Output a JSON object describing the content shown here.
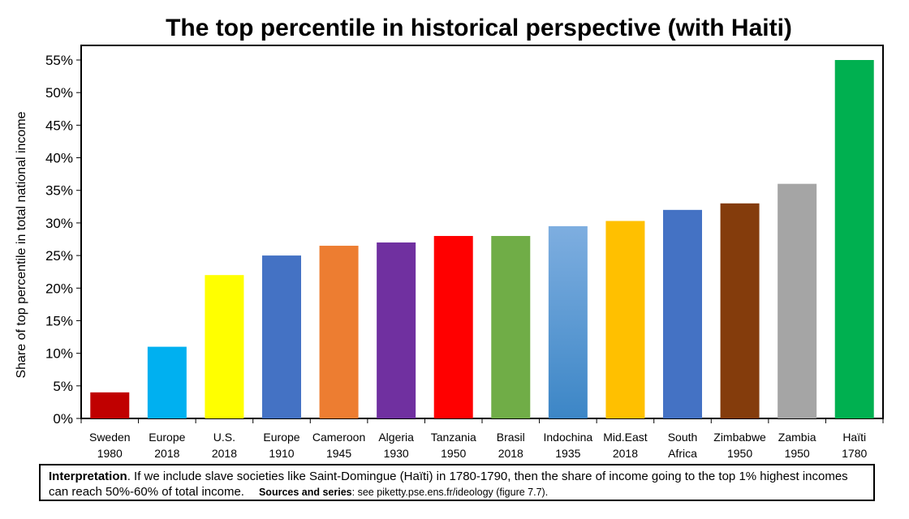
{
  "chart_data": {
    "type": "bar",
    "title": "The top percentile in historical perspective (with Haiti)",
    "ylabel": "Share of top percentile in total national income",
    "ylim": [
      0,
      0.55
    ],
    "yticks": [
      "0%",
      "5%",
      "10%",
      "15%",
      "20%",
      "25%",
      "30%",
      "35%",
      "40%",
      "45%",
      "50%",
      "55%"
    ],
    "ytick_values": [
      0,
      0.05,
      0.1,
      0.15,
      0.2,
      0.25,
      0.3,
      0.35,
      0.4,
      0.45,
      0.5,
      0.55
    ],
    "grid": false,
    "categories": [
      {
        "line1": "Sweden",
        "line2": "1980"
      },
      {
        "line1": "Europe",
        "line2": "2018"
      },
      {
        "line1": "U.S.",
        "line2": "2018"
      },
      {
        "line1": "Europe",
        "line2": "1910"
      },
      {
        "line1": "Cameroon",
        "line2": "1945"
      },
      {
        "line1": "Algeria",
        "line2": "1930"
      },
      {
        "line1": "Tanzania",
        "line2": "1950"
      },
      {
        "line1": "Brasil",
        "line2": "2018"
      },
      {
        "line1": "Indochina",
        "line2": "1935"
      },
      {
        "line1": "Mid.East",
        "line2": "2018"
      },
      {
        "line1": "South",
        "line2": "Africa"
      },
      {
        "line1": "Zimbabwe",
        "line2": "1950"
      },
      {
        "line1": "Zambia",
        "line2": "1950"
      },
      {
        "line1": "Haïti",
        "line2": "1780"
      }
    ],
    "values": [
      0.04,
      0.11,
      0.22,
      0.25,
      0.265,
      0.27,
      0.28,
      0.28,
      0.295,
      0.303,
      0.32,
      0.33,
      0.36,
      0.55
    ],
    "colors": [
      "#C00000",
      "#00B0F0",
      "#FFFF00",
      "#4472C4",
      "#ED7D31",
      "#7030A0",
      "#FF0000",
      "#70AD47",
      "#5B9BD5",
      "#FFC000",
      "#4472C4",
      "#843C0C",
      "#A5A5A5",
      "#00B050"
    ]
  },
  "interpretation": {
    "label": "Interpretation",
    "text": ". If we include slave societies like Saint-Domingue (Haïti) in 1780-1790, then the share of income going to the top 1% highest incomes can reach 50%-60% of total income.",
    "sources_label": "Sources and series",
    "sources_text": ": see piketty.pse.ens.fr/ideology (figure 7.7)."
  }
}
